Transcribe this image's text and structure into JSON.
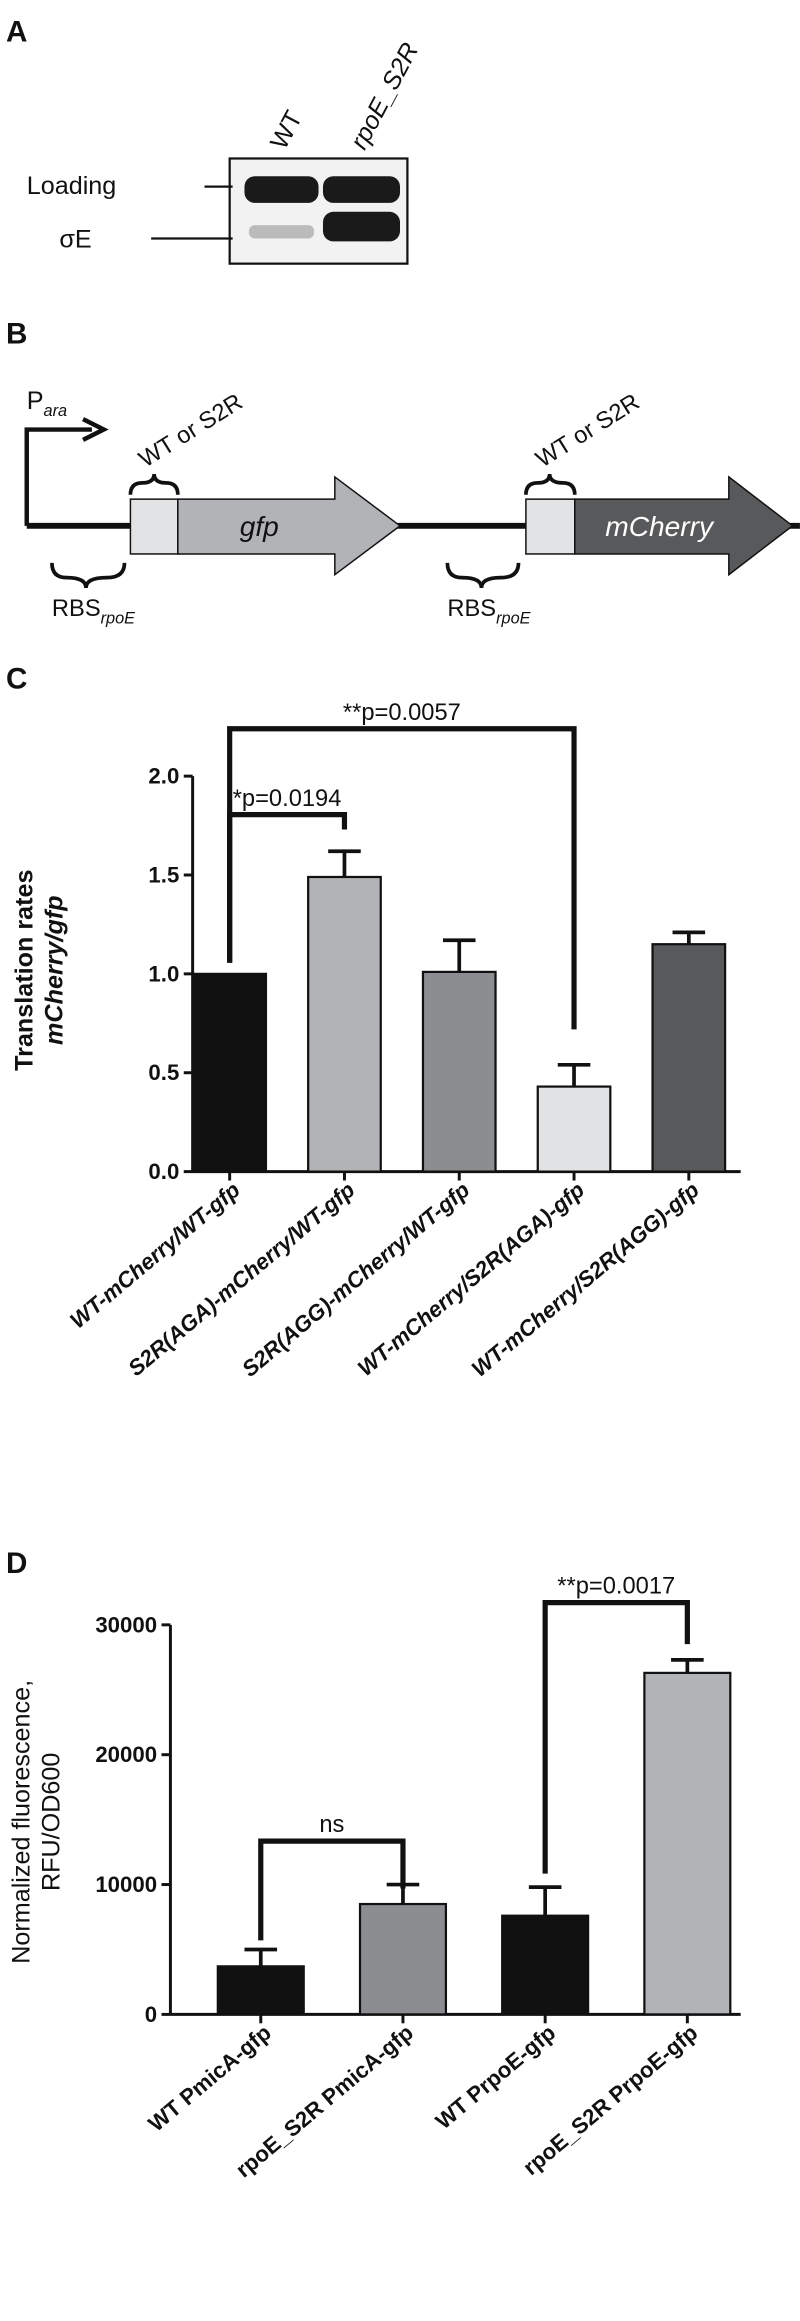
{
  "panel_a": {
    "label": "A",
    "lanes": [
      "WT",
      "rpoE_S2R"
    ],
    "bands": [
      "Loading",
      "σE"
    ]
  },
  "panel_b": {
    "label": "B",
    "promoter": "P",
    "promoter_sub": "ara",
    "site_labels": [
      "WT or S2R",
      "WT or S2R"
    ],
    "genes": [
      "gfp",
      "mCherry"
    ],
    "rbs": [
      "RBS",
      "RBS"
    ],
    "rbs_sub": [
      "rpoE",
      "rpoE"
    ]
  },
  "chart_data": [
    {
      "type": "bar",
      "panel_label": "C",
      "y_label": [
        "Translation rates",
        "mCherry/gfp"
      ],
      "categories": [
        "WT-mCherry/WT-gfp",
        "S2R(AGA)-mCherry/WT-gfp",
        "S2R(AGG)-mCherry/WT-gfp",
        "WT-mCherry/S2R(AGA)-gfp",
        "WT-mCherry/S2R(AGG)-gfp"
      ],
      "values": [
        1.0,
        1.49,
        1.01,
        0.43,
        1.15
      ],
      "errors": [
        0,
        0.13,
        0.16,
        0.11,
        0.06
      ],
      "colors": [
        "#111111",
        "#b1b3b6",
        "#8b8d90",
        "#e1e2e3",
        "#58595b"
      ],
      "ylim": [
        0,
        2.0
      ],
      "yticks": [
        {
          "value": 0,
          "label": "0.0"
        },
        {
          "value": 0.5,
          "label": "0.5"
        },
        {
          "value": 1.0,
          "label": "1.0"
        },
        {
          "value": 1.5,
          "label": "1.5"
        },
        {
          "value": 2.0,
          "label": "2.0"
        }
      ],
      "annotations": [
        "*p=0.0194",
        "**p=0.0057"
      ]
    },
    {
      "type": "bar",
      "panel_label": "D",
      "y_label": [
        "Normalized fluorescence,",
        "RFU/OD600"
      ],
      "categories": [
        "WT PmicA-gfp",
        "rpoE_S2R PmicA-gfp",
        "WT PrpoE-gfp",
        "rpoE_S2R PrpoE-gfp"
      ],
      "values": [
        3700,
        8500,
        7600,
        26300
      ],
      "errors": [
        1300,
        1500,
        2200,
        1000
      ],
      "colors": [
        "#111111",
        "#8b8d90",
        "#111111",
        "#b1b3b6"
      ],
      "ylim": [
        0,
        30000
      ],
      "yticks": [
        0,
        10000,
        20000,
        30000
      ],
      "annotations": [
        "ns",
        "**p=0.0017"
      ]
    }
  ]
}
